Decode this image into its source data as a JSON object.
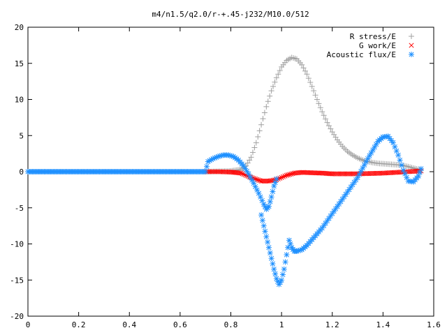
{
  "chart_data": {
    "type": "scatter",
    "title": "m4/n1.5/q2.0/r-+.45-j232/M10.0/512",
    "xlabel": "",
    "ylabel": "",
    "xlim": [
      0,
      1.6
    ],
    "ylim": [
      -20,
      20
    ],
    "xticks": [
      "0",
      "0.2",
      "0.4",
      "0.6",
      "0.8",
      "1",
      "1.2",
      "1.4",
      "1.6"
    ],
    "yticks": [
      "20",
      "15",
      "10",
      "5",
      "0",
      "-5",
      "-10",
      "-15",
      "-20"
    ],
    "grid": false,
    "legend_position": "top-right",
    "series": [
      {
        "name": "R stress/E",
        "marker": "plus",
        "color": "#a0a0a0",
        "points": [
          [
            0.7,
            0.0
          ],
          [
            0.75,
            0.05
          ],
          [
            0.8,
            0.1
          ],
          [
            0.84,
            0.3
          ],
          [
            0.86,
            0.8
          ],
          [
            0.88,
            2.0
          ],
          [
            0.9,
            4.0
          ],
          [
            0.92,
            6.5
          ],
          [
            0.94,
            9.0
          ],
          [
            0.96,
            11.2
          ],
          [
            0.98,
            13.0
          ],
          [
            1.0,
            14.5
          ],
          [
            1.02,
            15.4
          ],
          [
            1.04,
            15.8
          ],
          [
            1.06,
            15.6
          ],
          [
            1.08,
            14.8
          ],
          [
            1.1,
            13.5
          ],
          [
            1.12,
            11.8
          ],
          [
            1.14,
            10.0
          ],
          [
            1.16,
            8.3
          ],
          [
            1.18,
            6.8
          ],
          [
            1.2,
            5.5
          ],
          [
            1.22,
            4.4
          ],
          [
            1.24,
            3.5
          ],
          [
            1.26,
            2.8
          ],
          [
            1.28,
            2.3
          ],
          [
            1.3,
            1.9
          ],
          [
            1.32,
            1.6
          ],
          [
            1.34,
            1.4
          ],
          [
            1.36,
            1.25
          ],
          [
            1.38,
            1.15
          ],
          [
            1.4,
            1.1
          ],
          [
            1.42,
            1.05
          ],
          [
            1.44,
            1.0
          ],
          [
            1.46,
            0.95
          ],
          [
            1.48,
            0.85
          ],
          [
            1.5,
            0.7
          ],
          [
            1.52,
            0.5
          ],
          [
            1.55,
            0.2
          ]
        ]
      },
      {
        "name": "G work/E",
        "marker": "cross",
        "color": "#ff0000",
        "points": [
          [
            0.7,
            0.0
          ],
          [
            0.75,
            0.0
          ],
          [
            0.8,
            -0.05
          ],
          [
            0.84,
            -0.2
          ],
          [
            0.88,
            -0.8
          ],
          [
            0.92,
            -1.3
          ],
          [
            0.95,
            -1.3
          ],
          [
            0.98,
            -1.1
          ],
          [
            1.0,
            -0.8
          ],
          [
            1.02,
            -0.5
          ],
          [
            1.05,
            -0.2
          ],
          [
            1.08,
            -0.1
          ],
          [
            1.12,
            -0.15
          ],
          [
            1.16,
            -0.2
          ],
          [
            1.2,
            -0.3
          ],
          [
            1.25,
            -0.3
          ],
          [
            1.3,
            -0.3
          ],
          [
            1.35,
            -0.25
          ],
          [
            1.4,
            -0.2
          ],
          [
            1.45,
            -0.1
          ],
          [
            1.5,
            0.0
          ],
          [
            1.55,
            0.1
          ]
        ]
      },
      {
        "name": "Acoustic flux/E",
        "marker": "star",
        "color": "#1e90ff",
        "points": [
          [
            0.0,
            0.0
          ],
          [
            0.1,
            0.0
          ],
          [
            0.2,
            0.0
          ],
          [
            0.3,
            0.0
          ],
          [
            0.4,
            0.0
          ],
          [
            0.5,
            0.0
          ],
          [
            0.6,
            0.0
          ],
          [
            0.7,
            0.0
          ],
          [
            0.71,
            1.4
          ],
          [
            0.73,
            1.8
          ],
          [
            0.75,
            2.1
          ],
          [
            0.77,
            2.3
          ],
          [
            0.79,
            2.3
          ],
          [
            0.81,
            2.1
          ],
          [
            0.83,
            1.6
          ],
          [
            0.85,
            0.8
          ],
          [
            0.87,
            -0.3
          ],
          [
            0.89,
            -1.6
          ],
          [
            0.91,
            -3.0
          ],
          [
            0.93,
            -4.5
          ],
          [
            0.94,
            -5.2
          ],
          [
            0.95,
            -4.8
          ],
          [
            0.96,
            -3.5
          ],
          [
            0.97,
            -2.0
          ],
          [
            0.98,
            -1.0
          ],
          [
            0.92,
            -6.0
          ],
          [
            0.93,
            -7.5
          ],
          [
            0.94,
            -9.0
          ],
          [
            0.95,
            -10.5
          ],
          [
            0.96,
            -12.0
          ],
          [
            0.97,
            -13.5
          ],
          [
            0.98,
            -14.8
          ],
          [
            0.99,
            -15.6
          ],
          [
            1.0,
            -15.0
          ],
          [
            1.01,
            -13.5
          ],
          [
            1.02,
            -11.5
          ],
          [
            1.03,
            -9.5
          ],
          [
            1.04,
            -10.5
          ],
          [
            1.05,
            -11.0
          ],
          [
            1.06,
            -11.0
          ],
          [
            1.08,
            -10.8
          ],
          [
            1.1,
            -10.2
          ],
          [
            1.12,
            -9.4
          ],
          [
            1.14,
            -8.6
          ],
          [
            1.16,
            -7.8
          ],
          [
            1.18,
            -6.8
          ],
          [
            1.2,
            -5.8
          ],
          [
            1.22,
            -4.8
          ],
          [
            1.24,
            -3.8
          ],
          [
            1.26,
            -2.8
          ],
          [
            1.28,
            -1.8
          ],
          [
            1.3,
            -0.8
          ],
          [
            1.32,
            0.5
          ],
          [
            1.34,
            1.8
          ],
          [
            1.36,
            3.0
          ],
          [
            1.38,
            4.2
          ],
          [
            1.4,
            4.8
          ],
          [
            1.42,
            4.9
          ],
          [
            1.44,
            4.0
          ],
          [
            1.46,
            2.3
          ],
          [
            1.48,
            0.2
          ],
          [
            1.5,
            -1.3
          ],
          [
            1.52,
            -1.4
          ],
          [
            1.54,
            -0.6
          ],
          [
            1.55,
            0.4
          ]
        ]
      }
    ]
  }
}
